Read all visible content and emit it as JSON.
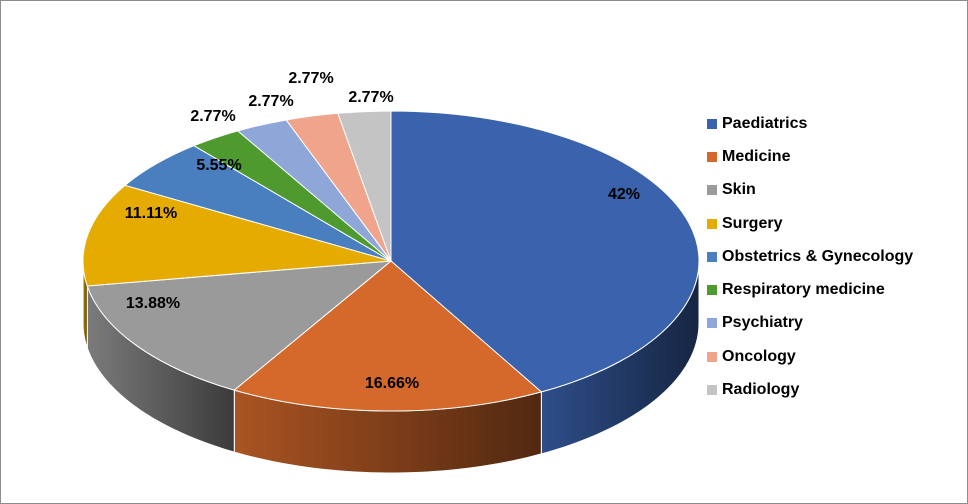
{
  "chart_data": {
    "type": "pie",
    "categories": [
      "Paediatrics",
      "Medicine",
      "Skin",
      "Surgery",
      "Obstetrics & Gynecology",
      "Respiratory medicine",
      "Psychiatry",
      "Oncology",
      "Radiology"
    ],
    "values": [
      42,
      16.66,
      13.88,
      11.11,
      5.55,
      2.77,
      2.77,
      2.77,
      2.77
    ],
    "labels": [
      "42%",
      "16.66%",
      "13.88%",
      "11.11%",
      "5.55%",
      "2.77%",
      "2.77%",
      "2.77%",
      "2.77%"
    ],
    "colors": [
      "#3a62ad",
      "#d4692b",
      "#9a9a9a",
      "#e6ab00",
      "#4a7fbf",
      "#4e9a2f",
      "#8fa6d9",
      "#efa48b",
      "#c4c4c4"
    ],
    "start_angle_deg": 270,
    "direction": "clockwise",
    "style": "3d",
    "legend_position": "right"
  }
}
